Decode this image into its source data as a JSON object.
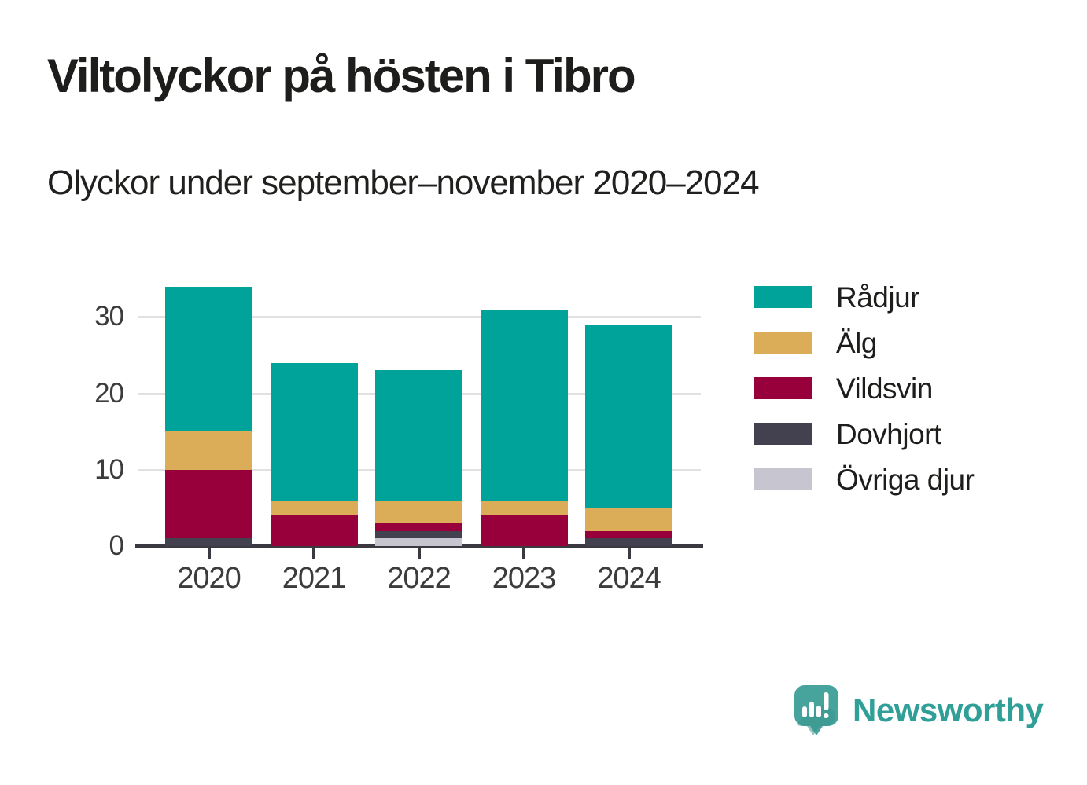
{
  "header": {
    "title": "Viltolyckor på hösten i Tibro",
    "subtitle": "Olyckor under september–november 2020–2024"
  },
  "chart_data": {
    "type": "bar",
    "stacked": true,
    "title": "Viltolyckor på hösten i Tibro",
    "subtitle": "Olyckor under september–november 2020–2024",
    "categories": [
      "2020",
      "2021",
      "2022",
      "2023",
      "2024"
    ],
    "series": [
      {
        "name": "Rådjur",
        "color": "#00a39a",
        "values": [
          19,
          18,
          17,
          25,
          24
        ]
      },
      {
        "name": "Älg",
        "color": "#dbad59",
        "values": [
          5,
          2,
          3,
          2,
          3
        ]
      },
      {
        "name": "Vildsvin",
        "color": "#98003c",
        "values": [
          9,
          4,
          1,
          4,
          1
        ]
      },
      {
        "name": "Dovhjort",
        "color": "#434050",
        "values": [
          1,
          0,
          1,
          0,
          1
        ]
      },
      {
        "name": "Övriga djur",
        "color": "#c7c5cf",
        "values": [
          0,
          0,
          1,
          0,
          0
        ]
      }
    ],
    "totals": [
      34,
      24,
      23,
      31,
      29
    ],
    "stack_order_bottom_to_top": [
      "Övriga djur",
      "Dovhjort",
      "Vildsvin",
      "Älg",
      "Rådjur"
    ],
    "xlabel": "",
    "ylabel": "",
    "y_ticks": [
      0,
      10,
      20,
      30
    ],
    "ylim": [
      0,
      35
    ],
    "grid": "horizontal",
    "legend_position": "right",
    "axis_color": "#3a3840",
    "grid_color": "#e1e1e1"
  },
  "branding": {
    "logo_text": "Newsworthy",
    "logo_color": "#2f9f97",
    "icon": "newsworthy-speech-bubble-bar-chart-icon"
  }
}
